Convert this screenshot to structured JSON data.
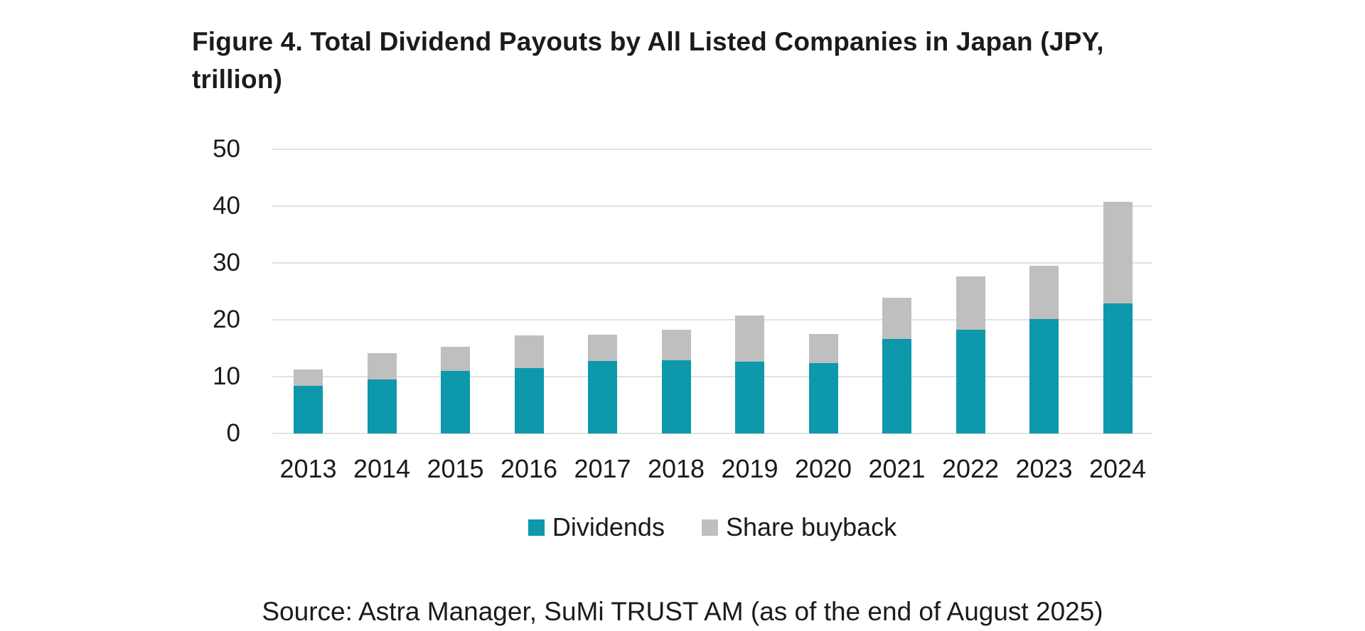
{
  "title": {
    "line1": "Figure 4. Total Dividend Payouts by All Listed Companies in Japan (JPY,",
    "line2": "trillion)",
    "full": "Figure 4. Total Dividend Payouts by All Listed Companies in Japan (JPY, trillion)"
  },
  "source_note": "Source: Astra Manager, SuMi TRUST AM (as of the end of August 2025)",
  "colors": {
    "dividends": "#0d98ab",
    "share_buyback": "#bfbfbf",
    "gridline": "#e2e2e2",
    "text": "#1b1b1b",
    "background": "#ffffff"
  },
  "chart_data": {
    "type": "bar",
    "stacked": true,
    "title": "Figure 4. Total Dividend Payouts by All Listed Companies in Japan (JPY, trillion)",
    "units": "JPY trillion",
    "categories": [
      "2013",
      "2014",
      "2015",
      "2016",
      "2017",
      "2018",
      "2019",
      "2020",
      "2021",
      "2022",
      "2023",
      "2024"
    ],
    "series": [
      {
        "name": "Dividends",
        "color": "#0d98ab",
        "values": [
          8.4,
          9.5,
          11.0,
          11.5,
          12.8,
          12.9,
          12.6,
          12.4,
          16.6,
          18.3,
          20.1,
          22.9
        ]
      },
      {
        "name": "Share buyback",
        "color": "#bfbfbf",
        "values": [
          2.9,
          4.6,
          4.2,
          5.8,
          4.6,
          5.3,
          8.2,
          5.1,
          7.3,
          9.3,
          9.4,
          17.9
        ]
      }
    ],
    "totals": [
      11.3,
      14.1,
      15.2,
      17.3,
      17.4,
      18.2,
      20.8,
      17.5,
      23.9,
      27.6,
      29.5,
      40.8
    ],
    "xlabel": "",
    "ylabel": "",
    "ylim": [
      0,
      50
    ],
    "yticks": [
      0,
      10,
      20,
      30,
      40,
      50
    ],
    "grid": true,
    "legend_position": "bottom",
    "legend": [
      "Dividends",
      "Share buyback"
    ]
  }
}
